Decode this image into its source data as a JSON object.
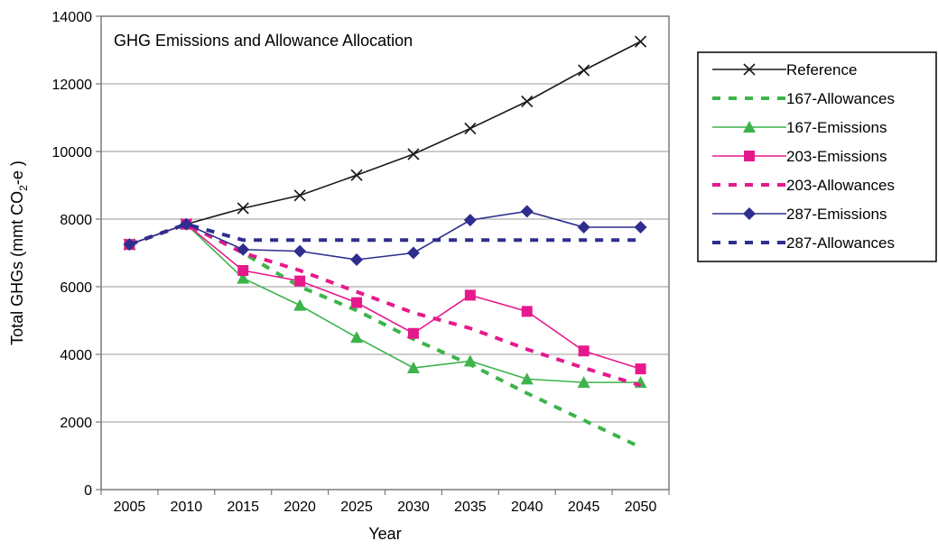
{
  "chart_data": {
    "type": "line",
    "title": "GHG Emissions and Allowance Allocation",
    "xlabel": "Year",
    "ylabel": "Total GHGs (mmt CO",
    "ylabel_sub": "2",
    "ylabel_tail": "-e )",
    "x": [
      "2005",
      "2010",
      "2015",
      "2020",
      "2025",
      "2030",
      "2035",
      "2040",
      "2045",
      "2050"
    ],
    "ylim": [
      0,
      14000
    ],
    "yticks": [
      0,
      2000,
      4000,
      6000,
      8000,
      10000,
      12000,
      14000
    ],
    "grid": true,
    "legend_position": "right",
    "series": [
      {
        "name": "Reference",
        "color": "#1a1a1a",
        "style": "solid",
        "marker": "x",
        "values": [
          7250,
          7850,
          8320,
          8700,
          9300,
          9920,
          10680,
          11480,
          12400,
          13250
        ]
      },
      {
        "name": "167-Allowances",
        "color": "#3cb44b",
        "style": "dashed",
        "marker": "none",
        "values": [
          7250,
          7850,
          7000,
          6000,
          5300,
          4450,
          3700,
          2850,
          2050,
          1250
        ]
      },
      {
        "name": "167-Emissions",
        "color": "#3cb44b",
        "style": "solid",
        "marker": "triangle",
        "values": [
          7250,
          7850,
          6250,
          5450,
          4500,
          3600,
          3800,
          3270,
          3170,
          3170
        ]
      },
      {
        "name": "203-Emissions",
        "color": "#e6198c",
        "style": "solid",
        "marker": "square",
        "values": [
          7250,
          7850,
          6480,
          6170,
          5530,
          4620,
          5750,
          5270,
          4100,
          3570
        ]
      },
      {
        "name": "203-Allowances",
        "color": "#e6198c",
        "style": "dashed",
        "marker": "none",
        "values": [
          7250,
          7850,
          7000,
          6480,
          5850,
          5230,
          4770,
          4150,
          3600,
          3080
        ]
      },
      {
        "name": "287-Emissions",
        "color": "#2e2e8f",
        "style": "solid",
        "marker": "diamond",
        "values": [
          7250,
          7850,
          7100,
          7050,
          6800,
          7000,
          7970,
          8230,
          7760,
          7760
        ]
      },
      {
        "name": "287-Allowances",
        "color": "#2e2e8f",
        "style": "dashed",
        "marker": "none",
        "values": [
          7250,
          7850,
          7380,
          7380,
          7380,
          7380,
          7380,
          7380,
          7380,
          7380
        ]
      }
    ]
  }
}
